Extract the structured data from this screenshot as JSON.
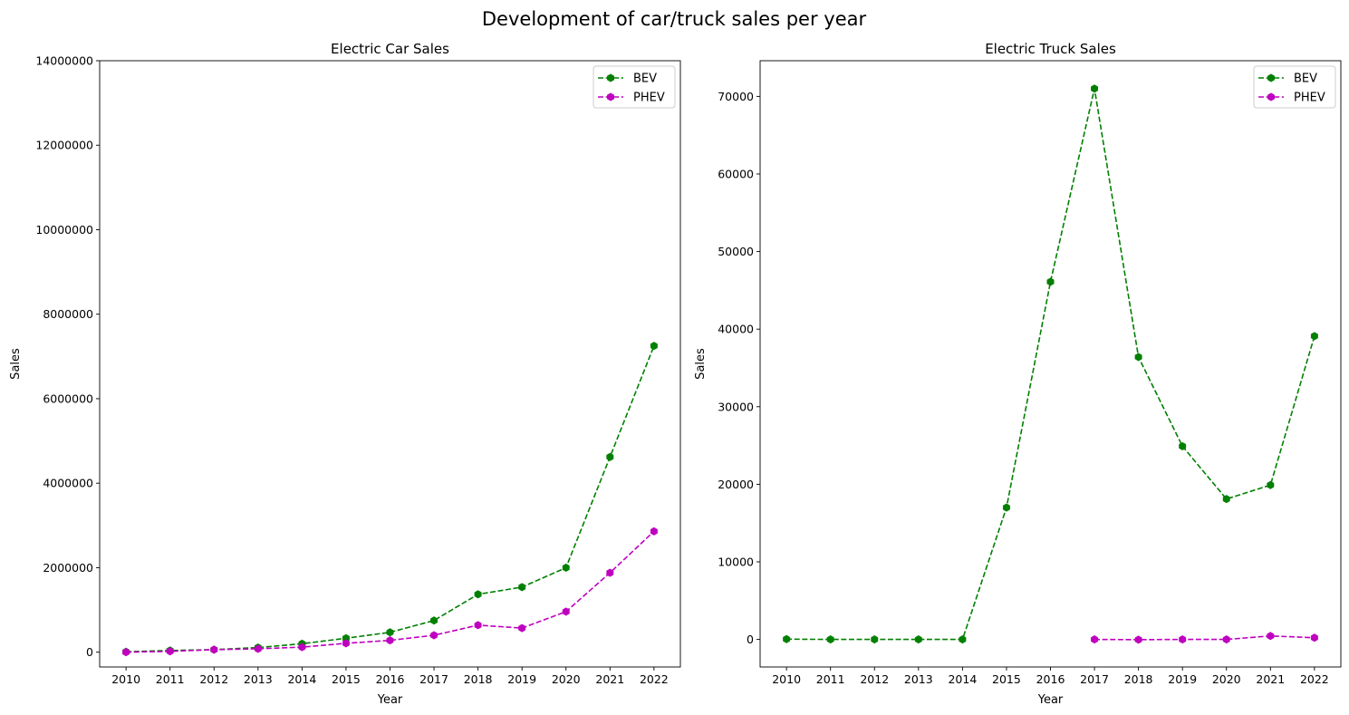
{
  "figure": {
    "suptitle": "Development of car/truck sales per year"
  },
  "colors": {
    "BEV": "#008000",
    "PHEV": "#bf00bf"
  },
  "chart_data": [
    {
      "type": "line",
      "title": "Electric Car Sales",
      "xlabel": "Year",
      "ylabel": "Sales",
      "x": [
        2010,
        2011,
        2012,
        2013,
        2014,
        2015,
        2016,
        2017,
        2018,
        2019,
        2020,
        2021,
        2022
      ],
      "x_ticks": [
        "2010",
        "2011",
        "2012",
        "2013",
        "2014",
        "2015",
        "2016",
        "2017",
        "2018",
        "2019",
        "2020",
        "2021",
        "2022"
      ],
      "ylim": [
        -350000,
        14000000
      ],
      "y_ticks": [
        0,
        2000000,
        4000000,
        6000000,
        8000000,
        10000000,
        12000000,
        14000000
      ],
      "y_tick_labels": [
        "0",
        "2000000",
        "4000000",
        "6000000",
        "8000000",
        "10000000",
        "12000000",
        "14000000"
      ],
      "legend_position": "top-right",
      "series": [
        {
          "name": "BEV",
          "style": "dashed-marker",
          "values": [
            10000,
            40000,
            60000,
            110000,
            200000,
            330000,
            470000,
            750000,
            1370000,
            1540000,
            2000000,
            4620000,
            7250000
          ]
        },
        {
          "name": "PHEV",
          "style": "dashed-marker",
          "values": [
            0,
            20000,
            60000,
            80000,
            120000,
            210000,
            280000,
            400000,
            640000,
            570000,
            960000,
            1880000,
            2860000
          ]
        }
      ]
    },
    {
      "type": "line",
      "title": "Electric Truck Sales",
      "xlabel": "Year",
      "ylabel": "Sales",
      "x": [
        2010,
        2011,
        2012,
        2013,
        2014,
        2015,
        2016,
        2017,
        2018,
        2019,
        2020,
        2021,
        2022
      ],
      "x_ticks": [
        "2010",
        "2011",
        "2012",
        "2013",
        "2014",
        "2015",
        "2016",
        "2017",
        "2018",
        "2019",
        "2020",
        "2021",
        "2022"
      ],
      "ylim": [
        -3550,
        74600
      ],
      "y_ticks": [
        0,
        10000,
        20000,
        30000,
        40000,
        50000,
        60000,
        70000
      ],
      "y_tick_labels": [
        "0",
        "10000",
        "20000",
        "30000",
        "40000",
        "50000",
        "60000",
        "70000"
      ],
      "legend_position": "top-right",
      "series": [
        {
          "name": "BEV",
          "style": "dashed-marker",
          "values": [
            40,
            0,
            0,
            0,
            0,
            17000,
            46100,
            71000,
            36400,
            24900,
            18100,
            19900,
            39100
          ]
        },
        {
          "name": "PHEV",
          "style": "dashed-marker",
          "values": [
            null,
            null,
            null,
            null,
            null,
            null,
            null,
            0,
            -30,
            0,
            0,
            450,
            220
          ]
        }
      ]
    }
  ]
}
